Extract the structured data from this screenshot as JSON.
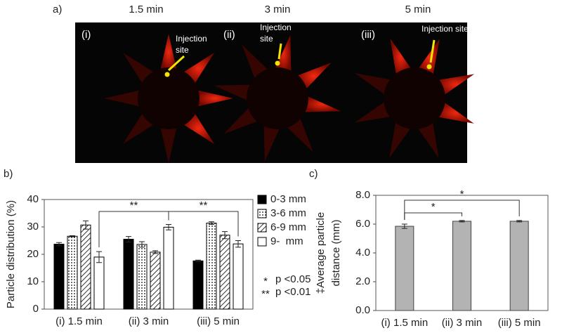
{
  "images": {
    "label": "a)",
    "panels": [
      {
        "time": "1.5 min",
        "label": "(i)",
        "annotation": [
          "Injection",
          "site"
        ]
      },
      {
        "time": "3 min",
        "label": "(ii)",
        "annotation": [
          "Injection",
          "site"
        ]
      },
      {
        "time": "5 min",
        "label": "(iii)",
        "annotation": [
          "Injection site"
        ]
      }
    ]
  },
  "chart_data": [
    {
      "type": "bar",
      "panel_label": "b)",
      "y_label": [
        "Particle distribution (%)"
      ],
      "categories": [
        "(i) 1.5 min",
        "(ii) 3 min",
        "(iii) 5 min"
      ],
      "series": [
        {
          "name": "0-3 mm",
          "fill": "solid",
          "color": "#000000",
          "values": [
            23.7,
            25.5,
            17.6
          ],
          "errors": [
            0.6,
            1.0,
            0.3
          ]
        },
        {
          "name": "3-6 mm",
          "fill": "dots",
          "color": "#000000",
          "values": [
            26.6,
            23.6,
            31.4
          ],
          "errors": [
            0.2,
            1.0,
            0.5
          ]
        },
        {
          "name": "6-9 mm",
          "fill": "hatch",
          "color": "#000000",
          "values": [
            30.7,
            20.8,
            27.0
          ],
          "errors": [
            1.5,
            0.5,
            1.3
          ]
        },
        {
          "name": "9-  mm",
          "fill": "none",
          "color": "#000000",
          "values": [
            19.0,
            29.9,
            23.8
          ],
          "errors": [
            2.0,
            1.0,
            1.2
          ]
        }
      ],
      "ylim": [
        0,
        40
      ],
      "yticks": [
        0,
        10,
        20,
        30,
        40
      ],
      "annotations": [
        "**",
        "**"
      ],
      "notes": [
        {
          "symbol": "*",
          "text": "p <0.05"
        },
        {
          "symbol": "**",
          "text": "p <0.01"
        }
      ]
    },
    {
      "type": "bar",
      "panel_label": "c)",
      "y_label": [
        "‡Average particle",
        "distance (mm)"
      ],
      "categories": [
        "(i) 1.5 min",
        "(ii) 3 min",
        "(iii) 5 min"
      ],
      "color": "#b3b3b3",
      "values": [
        5.85,
        6.2,
        6.2
      ],
      "errors": [
        0.15,
        0.05,
        0.05
      ],
      "ylim": [
        0,
        8
      ],
      "yticks": [
        {
          "value": 0,
          "label": "0.0"
        },
        {
          "value": 2,
          "label": "2.0"
        },
        {
          "value": 4,
          "label": "4.0"
        },
        {
          "value": 6,
          "label": "6.0"
        },
        {
          "value": 8,
          "label": "8.0"
        }
      ],
      "annotations": [
        "*",
        "*"
      ]
    }
  ]
}
